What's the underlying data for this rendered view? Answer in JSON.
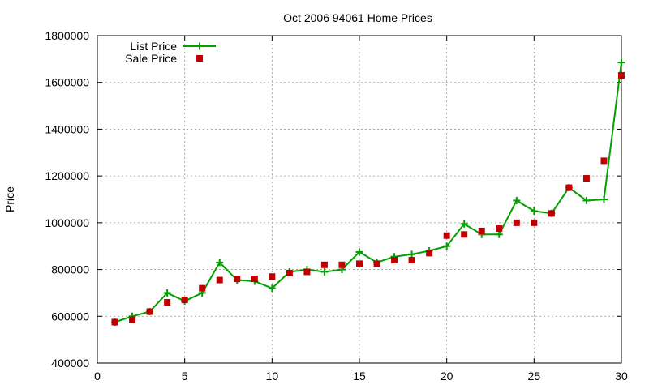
{
  "chart_data": {
    "type": "line",
    "title": "Oct 2006 94061 Home Prices",
    "xlabel": "",
    "ylabel": "Price",
    "xlim": [
      0,
      30
    ],
    "ylim": [
      400000,
      1800000
    ],
    "x_ticks": [
      0,
      5,
      10,
      15,
      20,
      25,
      30
    ],
    "y_ticks": [
      400000,
      600000,
      800000,
      1000000,
      1200000,
      1400000,
      1600000,
      1800000
    ],
    "grid": true,
    "legend_position": "top-left",
    "series": [
      {
        "name": "List Price",
        "style": "line+cross",
        "color": "#00a000",
        "x": [
          1,
          2,
          3,
          4,
          5,
          6,
          7,
          8,
          9,
          10,
          11,
          12,
          13,
          14,
          15,
          16,
          17,
          18,
          19,
          20,
          21,
          22,
          23,
          24,
          25,
          26,
          27,
          28,
          29,
          30
        ],
        "values": [
          575000,
          600000,
          620000,
          700000,
          665000,
          700000,
          830000,
          755000,
          750000,
          720000,
          790000,
          800000,
          790000,
          800000,
          875000,
          830000,
          855000,
          865000,
          880000,
          900000,
          995000,
          950000,
          950000,
          1095000,
          1050000,
          1040000,
          1150000,
          1095000,
          1100000,
          1685000
        ]
      },
      {
        "name": "Sale Price",
        "style": "square",
        "color": "#c00000",
        "x": [
          1,
          2,
          3,
          4,
          5,
          6,
          7,
          8,
          9,
          10,
          11,
          12,
          13,
          14,
          15,
          16,
          17,
          18,
          19,
          20,
          21,
          22,
          23,
          24,
          25,
          26,
          27,
          28,
          29,
          30
        ],
        "values": [
          575000,
          585000,
          620000,
          660000,
          670000,
          720000,
          755000,
          760000,
          760000,
          770000,
          785000,
          790000,
          820000,
          820000,
          825000,
          825000,
          840000,
          840000,
          870000,
          945000,
          950000,
          965000,
          975000,
          1000000,
          1000000,
          1040000,
          1150000,
          1190000,
          1265000,
          1630000
        ]
      }
    ]
  }
}
